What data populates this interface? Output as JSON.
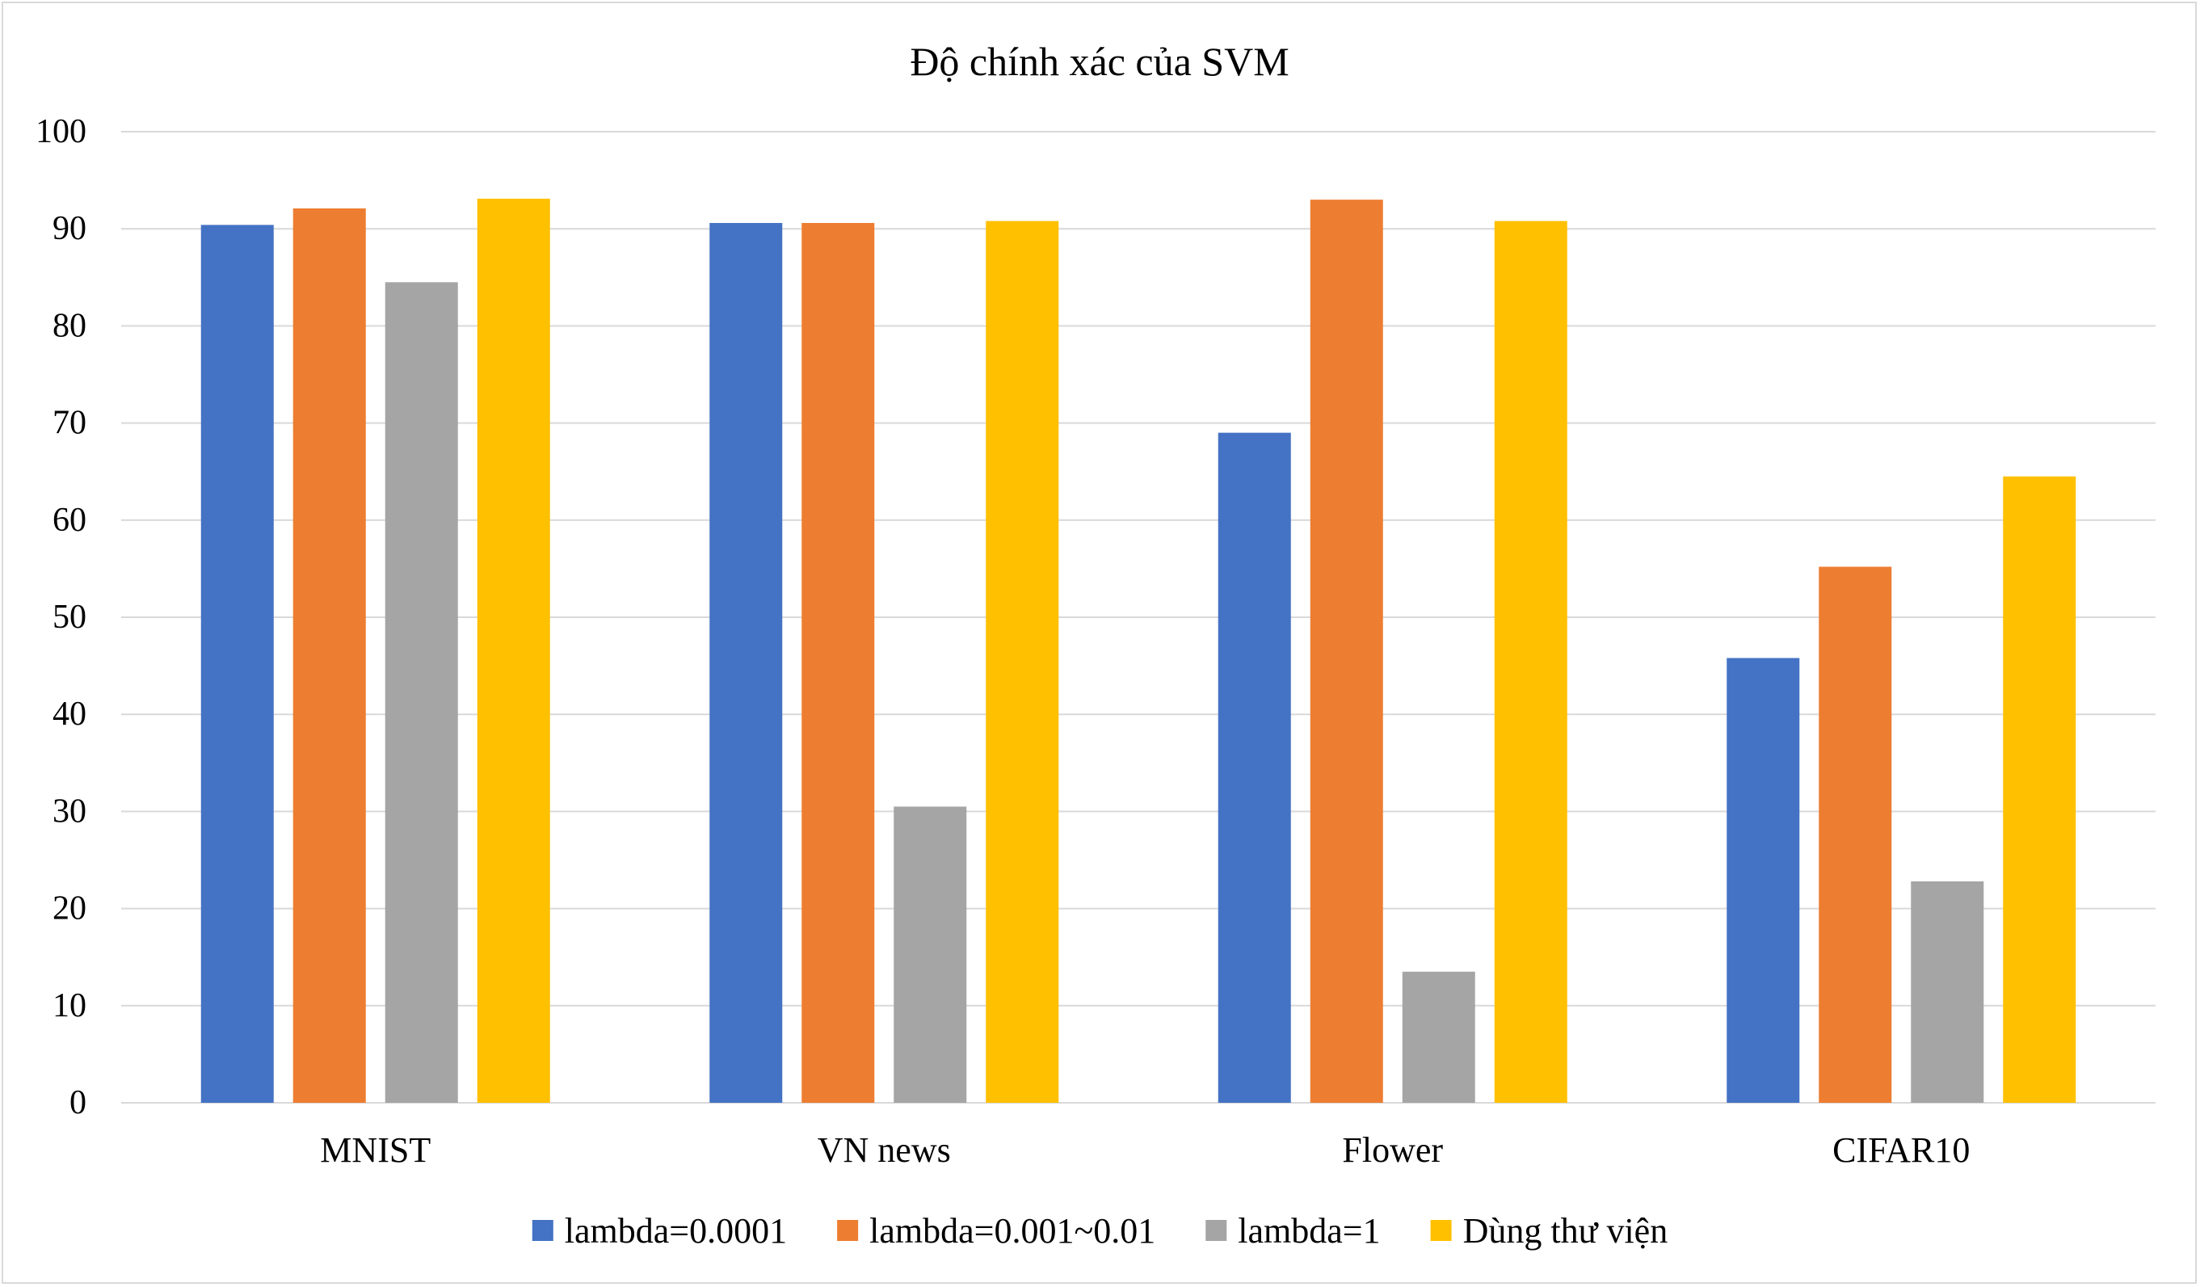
{
  "chart_data": {
    "type": "bar",
    "title": "Độ chính xác của SVM",
    "xlabel": "",
    "ylabel": "",
    "ylim": [
      0,
      100
    ],
    "yticks": [
      0,
      10,
      20,
      30,
      40,
      50,
      60,
      70,
      80,
      90,
      100
    ],
    "grid": true,
    "legend_position": "bottom",
    "categories": [
      "MNIST",
      "VN news",
      "Flower",
      "CIFAR10"
    ],
    "series": [
      {
        "name": "lambda=0.0001",
        "color": "#4472C4",
        "values": [
          90.4,
          90.6,
          69.0,
          45.8
        ]
      },
      {
        "name": "lambda=0.001~0.01",
        "color": "#ED7D31",
        "values": [
          92.1,
          90.6,
          93.0,
          55.2
        ]
      },
      {
        "name": "lambda=1",
        "color": "#A5A5A5",
        "values": [
          84.5,
          30.5,
          13.5,
          22.8
        ]
      },
      {
        "name": "Dùng thư viện",
        "color": "#FFC000",
        "values": [
          93.1,
          90.8,
          90.8,
          64.5
        ]
      }
    ]
  }
}
